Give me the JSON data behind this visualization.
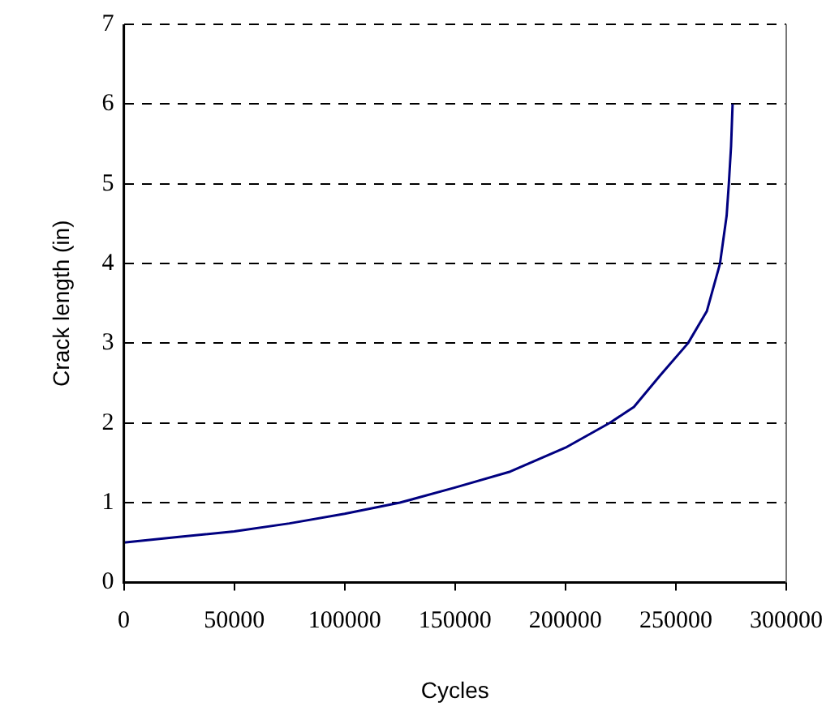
{
  "chart_data": {
    "type": "line",
    "xlabel": "Cycles",
    "ylabel": "Crack length (in)",
    "x": [
      0,
      25000,
      50000,
      75000,
      100000,
      125000,
      150000,
      175000,
      200000,
      220000,
      231000,
      243000,
      255500,
      264000,
      270000,
      273000,
      274000,
      275000,
      275700
    ],
    "series": [
      {
        "color": "#000080",
        "values": [
          0.5,
          0.57,
          0.64,
          0.74,
          0.86,
          1.0,
          1.19,
          1.39,
          1.69,
          2.0,
          2.2,
          2.6,
          3.0,
          3.4,
          4.0,
          4.6,
          5.0,
          5.47,
          6.0
        ]
      }
    ],
    "xlim": [
      0,
      300000
    ],
    "xticks": [
      0,
      50000,
      100000,
      150000,
      200000,
      250000,
      300000
    ],
    "ylim": [
      0,
      7
    ],
    "yticks": [
      0,
      1,
      2,
      3,
      4,
      5,
      6,
      7
    ],
    "grid": "y",
    "legend": false,
    "marker": "none",
    "line_style": "solid"
  }
}
